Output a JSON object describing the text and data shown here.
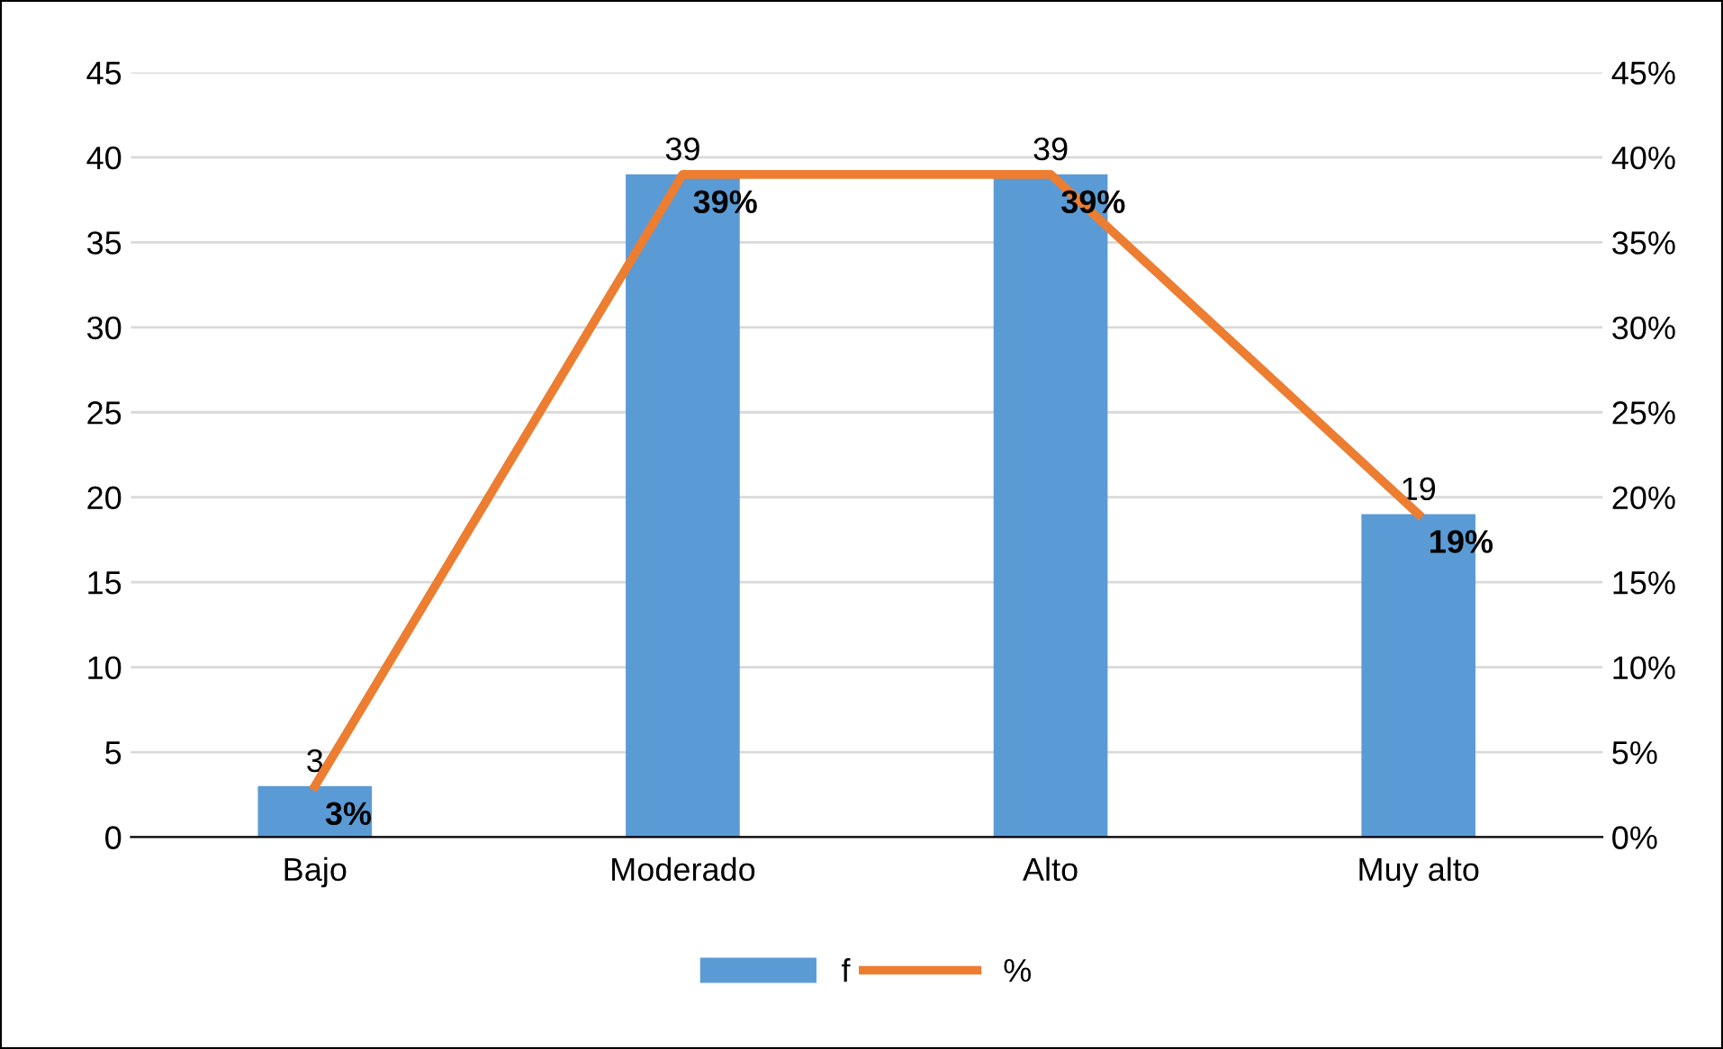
{
  "chart_data": {
    "type": "bar",
    "categories": [
      "Bajo",
      "Moderado",
      "Alto",
      "Muy alto"
    ],
    "series": [
      {
        "name": "f",
        "color": "#5b9bd5",
        "values": [
          3,
          39,
          39,
          19
        ],
        "value_labels": [
          "3",
          "39",
          "39",
          "19"
        ]
      },
      {
        "name": "%",
        "type": "line",
        "axis": "y2",
        "color": "#ed7d31",
        "values": [
          3,
          39,
          39,
          19
        ],
        "value_labels": [
          "3%",
          "39%",
          "39%",
          "19%"
        ]
      }
    ],
    "ylim": [
      0,
      45
    ],
    "yticks": [
      0,
      5,
      10,
      15,
      20,
      25,
      30,
      35,
      40,
      45
    ],
    "y2lim": [
      0,
      45
    ],
    "y2ticks": [
      {
        "value": 0,
        "label": "0%"
      },
      {
        "value": 5,
        "label": "5%"
      },
      {
        "value": 10,
        "label": "10%"
      },
      {
        "value": 15,
        "label": "15%"
      },
      {
        "value": 20,
        "label": "20%"
      },
      {
        "value": 25,
        "label": "25%"
      },
      {
        "value": 30,
        "label": "30%"
      },
      {
        "value": 35,
        "label": "35%"
      },
      {
        "value": 40,
        "label": "40%"
      },
      {
        "value": 45,
        "label": "45%"
      }
    ],
    "grid": "y",
    "legend": "bottom",
    "marker": "none",
    "line_style": "solid"
  }
}
